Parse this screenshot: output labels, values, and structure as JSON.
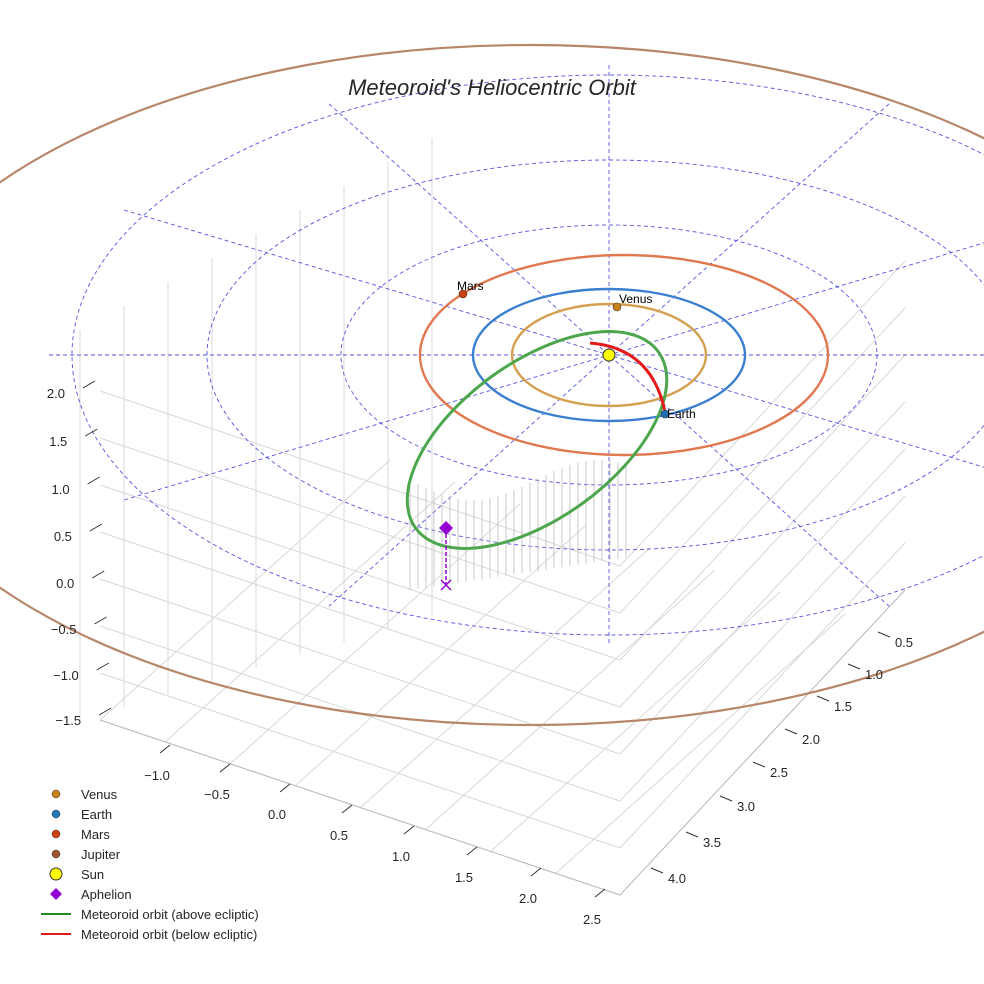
{
  "chart_data": {
    "type": "3d-line",
    "title": "Meteoroid's Heliocentric Orbit",
    "x_ticks": [
      "−1.0",
      "−0.5",
      "0.0",
      "0.5",
      "1.0",
      "1.5",
      "2.0",
      "2.5"
    ],
    "y_ticks": [
      "0.5",
      "1.0",
      "1.5",
      "2.0",
      "2.5",
      "3.0",
      "3.5",
      "4.0"
    ],
    "z_ticks": [
      "2.0",
      "1.5",
      "1.0",
      "0.5",
      "0.0",
      "−0.5",
      "−1.0",
      "−1.5"
    ],
    "planets": [
      {
        "name": "Venus",
        "label": "Venus",
        "color": "#d4a050",
        "marker": "#c8801a"
      },
      {
        "name": "Earth",
        "label": "Earth",
        "color": "#3a7fd0",
        "marker": "#1f6fb0"
      },
      {
        "name": "Mars",
        "label": "Mars",
        "color": "#e07850",
        "marker": "#cc4010"
      },
      {
        "name": "Jupiter",
        "label": "",
        "color": "#b8876a",
        "marker": "#a0522d"
      }
    ],
    "legend": {
      "placement": "bottom-left",
      "items": [
        {
          "label": "Venus",
          "kind": "dot",
          "color": "#c8801a"
        },
        {
          "label": "Earth",
          "kind": "dot",
          "color": "#1f77b4"
        },
        {
          "label": "Mars",
          "kind": "dot",
          "color": "#cc4010"
        },
        {
          "label": "Jupiter",
          "kind": "dot",
          "color": "#a0522d"
        },
        {
          "label": "Sun",
          "kind": "sun",
          "color": "#ffff00"
        },
        {
          "label": "Aphelion",
          "kind": "diamond",
          "color": "#9400d3"
        },
        {
          "label": "Meteoroid orbit (above ecliptic)",
          "kind": "line",
          "color": "#228b22"
        },
        {
          "label": "Meteoroid orbit (below ecliptic)",
          "kind": "line",
          "color": "#e41a1c"
        }
      ]
    }
  }
}
